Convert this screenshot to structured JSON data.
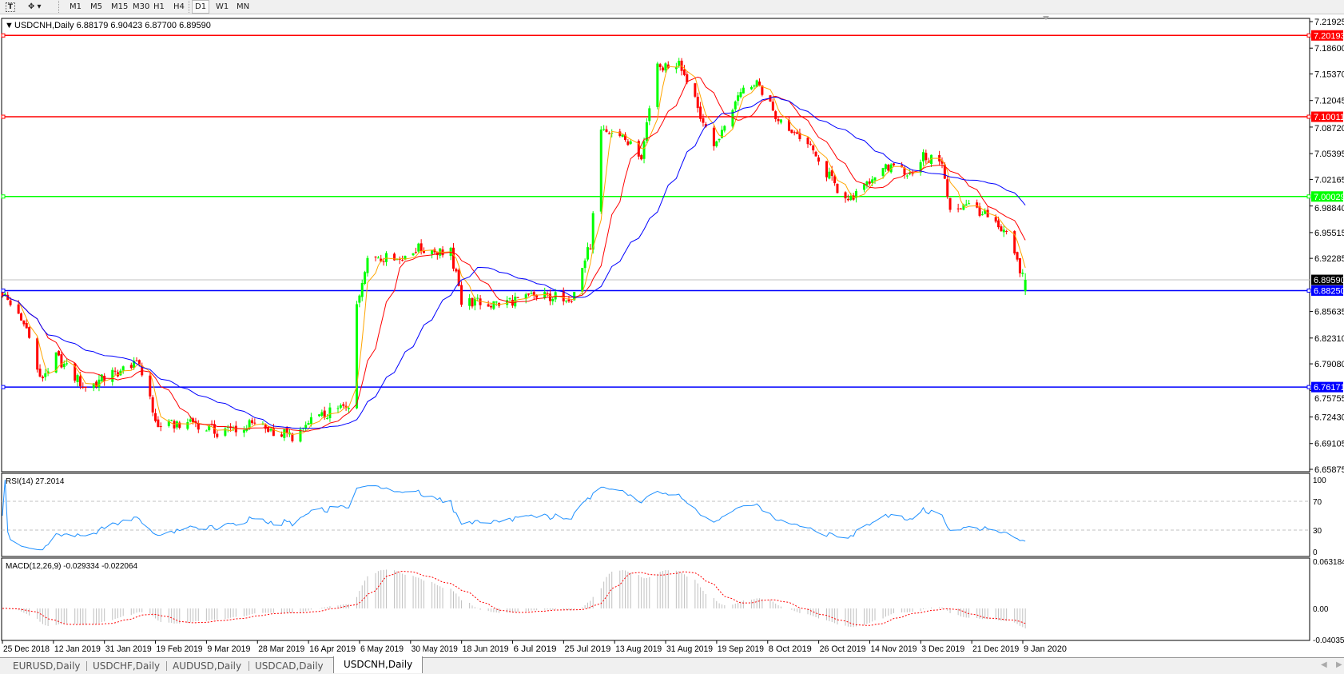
{
  "toolbar": {
    "icons": [
      "text-tool-icon",
      "objects-menu-icon"
    ],
    "timeframes": [
      "M1",
      "M5",
      "M15",
      "M30",
      "H1",
      "H4",
      "D1",
      "W1",
      "MN"
    ],
    "active_timeframe": "D1"
  },
  "chart": {
    "header": "USDCNH,Daily  6.88179 6.90423 6.87700 6.89590",
    "price_ticks": [
      "7.21925",
      "7.18600",
      "7.15370",
      "7.12045",
      "7.08720",
      "7.05395",
      "7.02165",
      "6.98840",
      "6.95515",
      "6.92285",
      "6.85635",
      "6.82310",
      "6.79080",
      "6.75755",
      "6.72430",
      "6.69105",
      "6.65875"
    ],
    "horizontal_lines": [
      {
        "price": "7.20193",
        "color": "#ff0000"
      },
      {
        "price": "7.10011",
        "color": "#ff0000"
      },
      {
        "price": "7.00029",
        "color": "#00ff00"
      },
      {
        "price": "6.88250",
        "color": "#0000ff"
      },
      {
        "price": "6.76171",
        "color": "#0000ff"
      }
    ],
    "bid": "6.89590",
    "up_color": "#00ff00",
    "down_color": "#ff0000",
    "ma_colors": [
      "#ffa500",
      "#ff0000",
      "#0000ff"
    ]
  },
  "rsi": {
    "label": "RSI(14) 27.2014",
    "ticks": [
      "100",
      "70",
      "30",
      "0"
    ],
    "color": "#1e90ff"
  },
  "macd": {
    "label": "MACD(12,26,9) -0.029334 -0.022064",
    "ticks": [
      "0.063184",
      "0.00",
      "-0.040355"
    ],
    "signal_color": "#ff0000",
    "hist_color": "#c0c0c0"
  },
  "date_labels": [
    "25 Dec 2018",
    "12 Jan 2019",
    "31 Jan 2019",
    "19 Feb 2019",
    "9 Mar 2019",
    "28 Mar 2019",
    "16 Apr 2019",
    "6 May 2019",
    "30 May 2019",
    "18 Jun 2019",
    "6 Jul 2019",
    "25 Jul 2019",
    "13 Aug 2019",
    "31 Aug 2019",
    "19 Sep 2019",
    "8 Oct 2019",
    "26 Oct 2019",
    "14 Nov 2019",
    "3 Dec 2019",
    "21 Dec 2019",
    "9 Jan 2020"
  ],
  "tabs": [
    "EURUSD,Daily",
    "USDCHF,Daily",
    "AUDUSD,Daily",
    "USDCAD,Daily",
    "USDCNH,Daily"
  ],
  "active_tab": "USDCNH,Daily",
  "chart_data": {
    "type": "candlestick",
    "symbol": "USDCNH",
    "timeframe": "Daily",
    "ylim": [
      6.65875,
      7.21925
    ],
    "close_keypoints": [
      [
        "2018-12-25",
        6.88
      ],
      [
        "2019-01-04",
        6.83
      ],
      [
        "2019-01-08",
        6.77
      ],
      [
        "2019-01-14",
        6.8
      ],
      [
        "2019-01-25",
        6.76
      ],
      [
        "2019-02-05",
        6.78
      ],
      [
        "2019-02-14",
        6.79
      ],
      [
        "2019-02-21",
        6.71
      ],
      [
        "2019-03-05",
        6.72
      ],
      [
        "2019-03-15",
        6.705
      ],
      [
        "2019-03-28",
        6.715
      ],
      [
        "2019-04-12",
        6.7
      ],
      [
        "2019-04-20",
        6.72
      ],
      [
        "2019-05-03",
        6.74
      ],
      [
        "2019-05-06",
        6.86
      ],
      [
        "2019-05-10",
        6.93
      ],
      [
        "2019-05-20",
        6.92
      ],
      [
        "2019-05-28",
        6.935
      ],
      [
        "2019-06-10",
        6.93
      ],
      [
        "2019-06-14",
        6.87
      ],
      [
        "2019-06-25",
        6.865
      ],
      [
        "2019-07-10",
        6.875
      ],
      [
        "2019-07-25",
        6.875
      ],
      [
        "2019-08-01",
        6.94
      ],
      [
        "2019-08-05",
        7.08
      ],
      [
        "2019-08-12",
        7.08
      ],
      [
        "2019-08-20",
        7.05
      ],
      [
        "2019-08-26",
        7.16
      ],
      [
        "2019-09-03",
        7.17
      ],
      [
        "2019-09-10",
        7.11
      ],
      [
        "2019-09-16",
        7.06
      ],
      [
        "2019-09-25",
        7.13
      ],
      [
        "2019-10-03",
        7.14
      ],
      [
        "2019-10-09",
        7.1
      ],
      [
        "2019-10-20",
        7.07
      ],
      [
        "2019-10-28",
        7.03
      ],
      [
        "2019-11-05",
        6.99
      ],
      [
        "2019-11-12",
        7.02
      ],
      [
        "2019-11-22",
        7.04
      ],
      [
        "2019-11-28",
        7.03
      ],
      [
        "2019-12-03",
        7.05
      ],
      [
        "2019-12-10",
        7.04
      ],
      [
        "2019-12-13",
        6.98
      ],
      [
        "2019-12-20",
        6.995
      ],
      [
        "2019-12-28",
        6.97
      ],
      [
        "2020-01-03",
        6.95
      ],
      [
        "2020-01-08",
        6.91
      ],
      [
        "2020-01-10",
        6.8959
      ]
    ],
    "last_bar": {
      "open": 6.88179,
      "high": 6.90423,
      "low": 6.877,
      "close": 6.8959
    }
  }
}
